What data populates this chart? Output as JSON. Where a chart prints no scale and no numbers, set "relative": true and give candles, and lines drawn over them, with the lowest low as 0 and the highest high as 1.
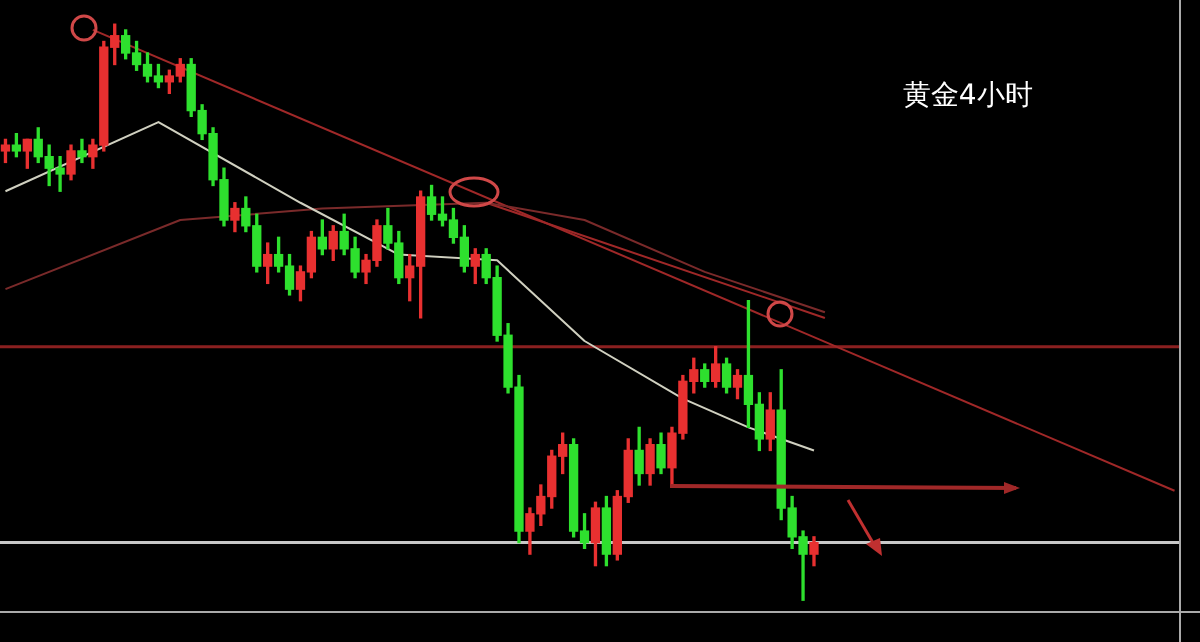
{
  "chart_data": {
    "type": "candlestick",
    "relative": true,
    "legend": false,
    "tick_labels": false,
    "annotations": [
      "黄金4小时"
    ],
    "categories": [
      null,
      null,
      null,
      null,
      null,
      null,
      null,
      null,
      null,
      null,
      null,
      null,
      null,
      null,
      null,
      null,
      null,
      null,
      null,
      null,
      null,
      null,
      null,
      null,
      null,
      null,
      null,
      null,
      null,
      null,
      null,
      null,
      null,
      null,
      null,
      null,
      null,
      null,
      null,
      null,
      null,
      null,
      null,
      null,
      null,
      null,
      null,
      null,
      null,
      null,
      null,
      null,
      null,
      null,
      null,
      null,
      null,
      null,
      null,
      null,
      null,
      null,
      null,
      null,
      null,
      null,
      null,
      null,
      null,
      null,
      null,
      null,
      null,
      null,
      null,
      null,
      null,
      null,
      null,
      null,
      null,
      null,
      null,
      null,
      null,
      null,
      null,
      null,
      null,
      null,
      null,
      null,
      null,
      null,
      null,
      null,
      null,
      null,
      null,
      null,
      null,
      null,
      null,
      null,
      null,
      null,
      null,
      null
    ],
    "ohlc": [
      [
        0.78,
        0.8,
        0.76,
        0.79
      ],
      [
        0.79,
        0.81,
        0.77,
        0.78
      ],
      [
        0.78,
        0.8,
        0.75,
        0.8
      ],
      [
        0.8,
        0.82,
        0.76,
        0.77
      ],
      [
        0.77,
        0.79,
        0.72,
        0.75
      ],
      [
        0.75,
        0.77,
        0.71,
        0.74
      ],
      [
        0.74,
        0.79,
        0.73,
        0.78
      ],
      [
        0.78,
        0.8,
        0.76,
        0.77
      ],
      [
        0.77,
        0.8,
        0.75,
        0.79
      ],
      [
        0.79,
        0.97,
        0.78,
        0.96
      ],
      [
        0.96,
        1.0,
        0.93,
        0.98
      ],
      [
        0.98,
        0.99,
        0.94,
        0.95
      ],
      [
        0.95,
        0.97,
        0.92,
        0.93
      ],
      [
        0.93,
        0.95,
        0.9,
        0.91
      ],
      [
        0.91,
        0.93,
        0.89,
        0.9
      ],
      [
        0.9,
        0.92,
        0.88,
        0.91
      ],
      [
        0.91,
        0.94,
        0.9,
        0.93
      ],
      [
        0.93,
        0.94,
        0.84,
        0.85
      ],
      [
        0.85,
        0.86,
        0.8,
        0.81
      ],
      [
        0.81,
        0.82,
        0.72,
        0.73
      ],
      [
        0.73,
        0.75,
        0.65,
        0.66
      ],
      [
        0.66,
        0.69,
        0.64,
        0.68
      ],
      [
        0.68,
        0.7,
        0.64,
        0.65
      ],
      [
        0.65,
        0.67,
        0.57,
        0.58
      ],
      [
        0.58,
        0.62,
        0.55,
        0.6
      ],
      [
        0.6,
        0.63,
        0.57,
        0.58
      ],
      [
        0.58,
        0.6,
        0.53,
        0.54
      ],
      [
        0.54,
        0.58,
        0.52,
        0.57
      ],
      [
        0.57,
        0.64,
        0.56,
        0.63
      ],
      [
        0.63,
        0.66,
        0.6,
        0.61
      ],
      [
        0.61,
        0.65,
        0.59,
        0.64
      ],
      [
        0.64,
        0.67,
        0.6,
        0.61
      ],
      [
        0.61,
        0.63,
        0.56,
        0.57
      ],
      [
        0.57,
        0.6,
        0.55,
        0.59
      ],
      [
        0.59,
        0.66,
        0.58,
        0.65
      ],
      [
        0.65,
        0.68,
        0.61,
        0.62
      ],
      [
        0.62,
        0.64,
        0.55,
        0.56
      ],
      [
        0.56,
        0.6,
        0.52,
        0.58
      ],
      [
        0.58,
        0.71,
        0.49,
        0.7
      ],
      [
        0.7,
        0.72,
        0.66,
        0.67
      ],
      [
        0.67,
        0.7,
        0.65,
        0.66
      ],
      [
        0.66,
        0.68,
        0.62,
        0.63
      ],
      [
        0.63,
        0.65,
        0.57,
        0.58
      ],
      [
        0.58,
        0.61,
        0.55,
        0.6
      ],
      [
        0.6,
        0.61,
        0.55,
        0.56
      ],
      [
        0.56,
        0.58,
        0.45,
        0.46
      ],
      [
        0.46,
        0.48,
        0.36,
        0.37
      ],
      [
        0.37,
        0.39,
        0.1,
        0.12
      ],
      [
        0.12,
        0.16,
        0.08,
        0.15
      ],
      [
        0.15,
        0.2,
        0.13,
        0.18
      ],
      [
        0.18,
        0.26,
        0.16,
        0.25
      ],
      [
        0.25,
        0.29,
        0.22,
        0.27
      ],
      [
        0.27,
        0.28,
        0.11,
        0.12
      ],
      [
        0.12,
        0.15,
        0.09,
        0.1
      ],
      [
        0.1,
        0.17,
        0.06,
        0.16
      ],
      [
        0.16,
        0.18,
        0.06,
        0.08
      ],
      [
        0.08,
        0.19,
        0.07,
        0.18
      ],
      [
        0.18,
        0.28,
        0.17,
        0.26
      ],
      [
        0.26,
        0.3,
        0.2,
        0.22
      ],
      [
        0.22,
        0.28,
        0.2,
        0.27
      ],
      [
        0.27,
        0.29,
        0.22,
        0.23
      ],
      [
        0.23,
        0.3,
        0.2,
        0.29
      ],
      [
        0.29,
        0.39,
        0.28,
        0.38
      ],
      [
        0.38,
        0.42,
        0.36,
        0.4
      ],
      [
        0.4,
        0.41,
        0.37,
        0.38
      ],
      [
        0.38,
        0.44,
        0.37,
        0.41
      ],
      [
        0.41,
        0.42,
        0.36,
        0.37
      ],
      [
        0.37,
        0.4,
        0.35,
        0.39
      ],
      [
        0.39,
        0.52,
        0.3,
        0.34
      ],
      [
        0.34,
        0.36,
        0.26,
        0.28
      ],
      [
        0.28,
        0.36,
        0.26,
        0.33
      ],
      [
        0.33,
        0.4,
        0.14,
        0.16
      ],
      [
        0.16,
        0.18,
        0.09,
        0.11
      ],
      [
        0.11,
        0.12,
        0.0,
        0.08
      ],
      [
        0.08,
        0.11,
        0.06,
        0.1
      ],
      null,
      null,
      null,
      null,
      null,
      null,
      null,
      null,
      null,
      null,
      null,
      null,
      null,
      null,
      null,
      null,
      null,
      null,
      null,
      null,
      null,
      null,
      null,
      null,
      null,
      null,
      null,
      null,
      null,
      null,
      null,
      null,
      null
    ],
    "series": [
      {
        "type": "line",
        "color": "#d0d0c0",
        "values": [
          0.71,
          null,
          null,
          null,
          null,
          null,
          null,
          null,
          null,
          null,
          null,
          null,
          null,
          null,
          0.83,
          null,
          null,
          null,
          null,
          null,
          null,
          null,
          null,
          null,
          null,
          null,
          null,
          0.69,
          null,
          null,
          null,
          null,
          null,
          null,
          null,
          null,
          0.6,
          null,
          null,
          null,
          null,
          null,
          null,
          null,
          null,
          0.59,
          null,
          null,
          null,
          null,
          null,
          null,
          null,
          0.45,
          null,
          null,
          null,
          null,
          null,
          null,
          null,
          null,
          0.35,
          null,
          null,
          null,
          null,
          null,
          0.3,
          null,
          null,
          null,
          null,
          null,
          0.26,
          null,
          null,
          null,
          null,
          null,
          null,
          null,
          null,
          null,
          null,
          null,
          null,
          null,
          null,
          null,
          null,
          null,
          null,
          null,
          null,
          null,
          null,
          null,
          null,
          null,
          null,
          null,
          null,
          null,
          null,
          null,
          null,
          null
        ]
      },
      {
        "type": "line",
        "color": "#7a2a2a",
        "values": [
          0.54,
          null,
          null,
          null,
          null,
          null,
          null,
          null,
          null,
          null,
          null,
          null,
          null,
          null,
          null,
          null,
          0.66,
          null,
          null,
          null,
          null,
          null,
          null,
          null,
          null,
          null,
          null,
          null,
          null,
          0.68,
          null,
          null,
          null,
          null,
          null,
          null,
          null,
          null,
          null,
          null,
          null,
          null,
          null,
          null,
          0.69,
          null,
          null,
          null,
          null,
          null,
          null,
          null,
          null,
          0.66,
          null,
          null,
          null,
          null,
          null,
          null,
          null,
          null,
          null,
          null,
          0.57,
          null,
          null,
          null,
          null,
          null,
          null,
          null,
          null,
          null,
          null,
          0.5,
          null,
          null,
          null,
          null,
          null,
          null,
          null,
          null,
          null,
          null,
          null,
          null,
          null,
          null,
          null,
          null,
          null,
          null,
          null,
          null,
          null,
          null,
          null,
          null,
          null,
          null,
          null,
          null,
          null,
          null,
          null,
          null
        ]
      },
      {
        "type": "line",
        "color": "#a02828",
        "values": [
          null,
          null,
          null,
          null,
          null,
          null,
          null,
          null,
          0.99,
          null,
          null,
          null,
          null,
          null,
          null,
          null,
          null,
          null,
          null,
          null,
          null,
          null,
          null,
          null,
          null,
          null,
          null,
          null,
          null,
          null,
          null,
          null,
          null,
          null,
          null,
          null,
          null,
          null,
          null,
          null,
          null,
          null,
          null,
          null,
          null,
          null,
          null,
          null,
          null,
          null,
          null,
          null,
          null,
          null,
          null,
          null,
          null,
          null,
          null,
          null,
          null,
          null,
          null,
          null,
          null,
          null,
          null,
          null,
          null,
          null,
          null,
          null,
          null,
          null,
          null,
          null,
          null,
          null,
          null,
          null,
          null,
          null,
          null,
          null,
          null,
          null,
          null,
          null,
          null,
          null,
          null,
          null,
          null,
          null,
          null,
          null,
          null,
          null,
          null,
          null,
          null,
          null,
          null,
          null,
          null,
          null,
          null,
          0.19
        ]
      },
      {
        "type": "line",
        "color": "#a02828",
        "values": [
          null,
          null,
          null,
          null,
          null,
          null,
          null,
          null,
          null,
          null,
          null,
          null,
          null,
          null,
          null,
          null,
          null,
          null,
          null,
          null,
          null,
          null,
          null,
          null,
          null,
          null,
          null,
          null,
          null,
          null,
          null,
          null,
          null,
          null,
          null,
          null,
          null,
          null,
          null,
          null,
          null,
          null,
          null,
          null,
          0.69,
          null,
          null,
          null,
          null,
          null,
          null,
          null,
          null,
          null,
          null,
          null,
          null,
          null,
          null,
          null,
          null,
          null,
          null,
          null,
          null,
          null,
          null,
          null,
          null,
          null,
          null,
          null,
          null,
          null,
          null,
          0.49,
          null,
          null,
          null,
          null,
          null,
          null,
          null,
          null,
          null,
          null,
          null,
          null,
          null,
          null,
          null,
          null,
          null,
          null,
          null,
          null,
          null,
          null,
          null,
          null,
          null,
          null,
          null,
          null,
          null,
          null,
          null,
          null
        ]
      }
    ],
    "ref_lines": [
      {
        "axis": "y",
        "value": 0.44,
        "color": "#8b2020"
      },
      {
        "axis": "y",
        "value": 0.1,
        "color": "#c8c8c8"
      }
    ]
  }
}
